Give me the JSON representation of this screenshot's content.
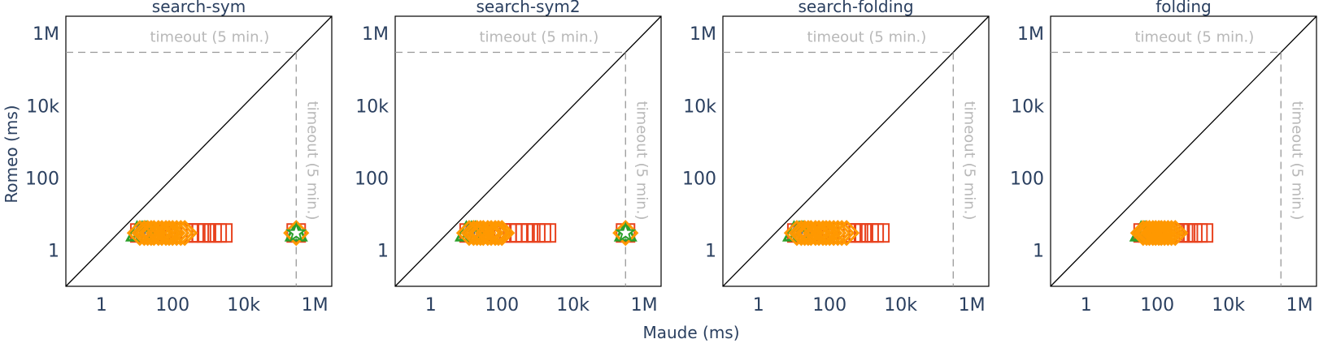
{
  "figure": {
    "xlabel": "Maude (ms)",
    "ylabel": "Romeo (ms)"
  },
  "colors": {
    "axis": "#2a3f5f",
    "diagonal": "#000000",
    "timeout": "#999999",
    "timeout_text": "#b8b8b8",
    "series": [
      "#e8421e",
      "#1f5fbf",
      "#2ca02c",
      "#ff9800"
    ]
  },
  "chart_data": [
    {
      "type": "scatter",
      "title": "search-sym",
      "xscale": "log",
      "yscale": "log",
      "xlim": [
        0.1,
        3000000
      ],
      "ylim": [
        0.1,
        3000000
      ],
      "xticks": [
        1,
        100,
        10000,
        1000000
      ],
      "xticklabels": [
        "1",
        "100",
        "10k",
        "1M"
      ],
      "yticks": [
        1,
        100,
        10000,
        1000000
      ],
      "yticklabels": [
        "1",
        "100",
        "10k",
        "1M"
      ],
      "timeout_label": "timeout (5 min.)",
      "timeout": 300000,
      "diagonal": true,
      "series": [
        {
          "marker": "square",
          "x": [
            12,
            18,
            25,
            35,
            50,
            70,
            100,
            140,
            200,
            300,
            450,
            650,
            900,
            1300,
            1800,
            2600,
            300000
          ],
          "y": [
            3,
            3,
            3,
            3,
            3,
            3,
            3,
            3,
            3,
            3,
            3,
            3,
            3,
            3,
            3,
            3,
            3
          ]
        },
        {
          "marker": "circle",
          "x": [
            15,
            20,
            28
          ],
          "y": [
            3,
            3,
            3
          ]
        },
        {
          "marker": "triangle",
          "x": [
            10,
            14,
            18,
            300000
          ],
          "y": [
            3,
            3,
            3,
            3
          ]
        },
        {
          "marker": "diamond",
          "x": [
            12,
            16,
            20,
            25,
            30,
            40,
            50,
            65,
            80,
            100,
            130,
            170,
            220,
            300000
          ],
          "y": [
            3,
            3,
            3,
            3,
            3,
            3,
            3,
            3,
            3,
            3,
            3,
            3,
            3,
            3
          ]
        },
        {
          "marker": "star",
          "x": [
            300000
          ],
          "y": [
            3
          ]
        }
      ]
    },
    {
      "type": "scatter",
      "title": "search-sym2",
      "xscale": "log",
      "yscale": "log",
      "xlim": [
        0.1,
        3000000
      ],
      "ylim": [
        0.1,
        3000000
      ],
      "xticks": [
        1,
        100,
        10000,
        1000000
      ],
      "xticklabels": [
        "1",
        "100",
        "10k",
        "1M"
      ],
      "yticks": [
        1,
        100,
        10000,
        1000000
      ],
      "yticklabels": [
        "1",
        "100",
        "10k",
        "1M"
      ],
      "timeout_label": "timeout (5 min.)",
      "timeout": 300000,
      "diagonal": true,
      "series": [
        {
          "marker": "square",
          "x": [
            12,
            18,
            25,
            35,
            50,
            70,
            100,
            140,
            200,
            300,
            450,
            650,
            900,
            1300,
            1800,
            300000
          ],
          "y": [
            3,
            3,
            3,
            3,
            3,
            3,
            3,
            3,
            3,
            3,
            3,
            3,
            3,
            3,
            3,
            3
          ]
        },
        {
          "marker": "circle",
          "x": [
            15,
            20,
            28
          ],
          "y": [
            3,
            3,
            3
          ]
        },
        {
          "marker": "triangle",
          "x": [
            10,
            14,
            18,
            300000
          ],
          "y": [
            3,
            3,
            3,
            3
          ]
        },
        {
          "marker": "diamond",
          "x": [
            12,
            16,
            20,
            25,
            30,
            40,
            50,
            65,
            80,
            100,
            300000
          ],
          "y": [
            3,
            3,
            3,
            3,
            3,
            3,
            3,
            3,
            3,
            3,
            3
          ]
        },
        {
          "marker": "star",
          "x": [
            300000
          ],
          "y": [
            3
          ]
        }
      ]
    },
    {
      "type": "scatter",
      "title": "search-folding",
      "xscale": "log",
      "yscale": "log",
      "xlim": [
        0.1,
        3000000
      ],
      "ylim": [
        0.1,
        3000000
      ],
      "xticks": [
        1,
        100,
        10000,
        1000000
      ],
      "xticklabels": [
        "1",
        "100",
        "10k",
        "1M"
      ],
      "yticks": [
        1,
        100,
        10000,
        1000000
      ],
      "yticklabels": [
        "1",
        "100",
        "10k",
        "1M"
      ],
      "timeout_label": "timeout (5 min.)",
      "timeout": 300000,
      "diagonal": true,
      "series": [
        {
          "marker": "square",
          "x": [
            12,
            18,
            25,
            35,
            50,
            70,
            100,
            140,
            200,
            300,
            450,
            650,
            900,
            1300,
            1800,
            2600
          ],
          "y": [
            3,
            3,
            3,
            3,
            3,
            3,
            3,
            3,
            3,
            3,
            3,
            3,
            3,
            3,
            3,
            3
          ]
        },
        {
          "marker": "circle",
          "x": [
            15,
            20,
            28
          ],
          "y": [
            3,
            3,
            3
          ]
        },
        {
          "marker": "triangle",
          "x": [
            10,
            14,
            18
          ],
          "y": [
            3,
            3,
            3
          ]
        },
        {
          "marker": "diamond",
          "x": [
            12,
            16,
            20,
            25,
            30,
            40,
            50,
            65,
            80,
            100,
            130,
            170,
            220,
            300
          ],
          "y": [
            3,
            3,
            3,
            3,
            3,
            3,
            3,
            3,
            3,
            3,
            3,
            3,
            3,
            3
          ]
        }
      ]
    },
    {
      "type": "scatter",
      "title": "folding",
      "xscale": "log",
      "yscale": "log",
      "xlim": [
        0.1,
        3000000
      ],
      "ylim": [
        0.1,
        3000000
      ],
      "xticks": [
        1,
        100,
        10000,
        1000000
      ],
      "xticklabels": [
        "1",
        "100",
        "10k",
        "1M"
      ],
      "yticks": [
        1,
        100,
        10000,
        1000000
      ],
      "yticklabels": [
        "1",
        "100",
        "10k",
        "1M"
      ],
      "timeout_label": "timeout (5 min.)",
      "timeout": 300000,
      "diagonal": true,
      "series": [
        {
          "marker": "square",
          "x": [
            40,
            55,
            75,
            100,
            140,
            200,
            280,
            400,
            550,
            750,
            1000,
            1400,
            2000
          ],
          "y": [
            3,
            3,
            3,
            3,
            3,
            3,
            3,
            3,
            3,
            3,
            3,
            3,
            3
          ]
        },
        {
          "marker": "circle",
          "x": [
            55,
            70,
            90
          ],
          "y": [
            3,
            3,
            3
          ]
        },
        {
          "marker": "triangle",
          "x": [
            35,
            45,
            60
          ],
          "y": [
            3,
            3,
            3
          ]
        },
        {
          "marker": "diamond",
          "x": [
            40,
            50,
            60,
            75,
            90,
            110,
            130,
            160,
            200,
            250,
            320
          ],
          "y": [
            3,
            3,
            3,
            3,
            3,
            3,
            3,
            3,
            3,
            3,
            3
          ]
        }
      ]
    }
  ]
}
